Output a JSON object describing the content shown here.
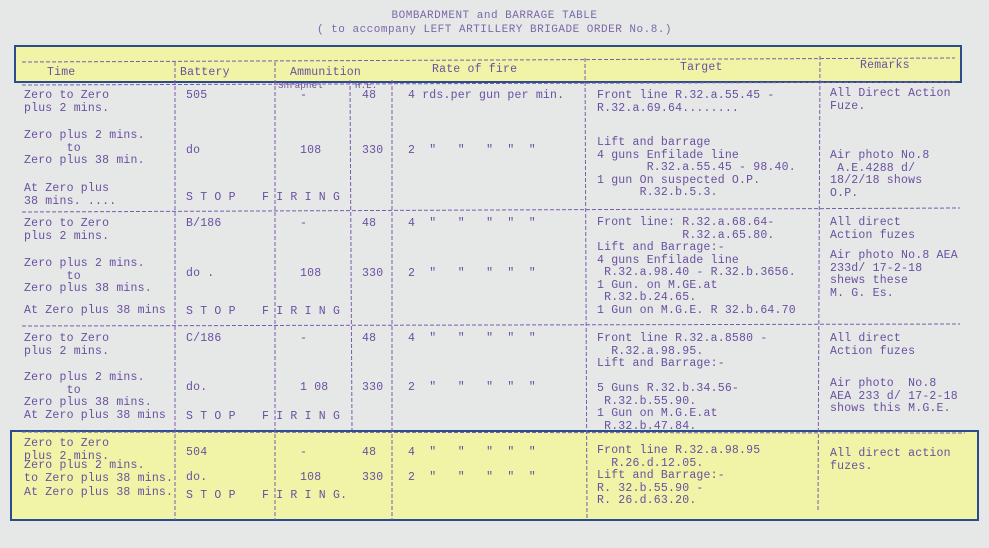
{
  "title": {
    "line1": "BOMBARDMENT and BARRAGE TABLE",
    "line2": "( to accompany LEFT ARTILLERY BRIGADE ORDER No.8.)"
  },
  "headers": {
    "time": "Time",
    "battery": "Battery",
    "ammunition": "Ammunition",
    "shrapnel": "Shrapnel",
    "he": "H.E.",
    "rate": "Rate of fire",
    "target": "Target",
    "remarks": "Remarks"
  },
  "highlight": {
    "fill": "#f1f3a6",
    "border": "#2b4c8c"
  },
  "ink_color": "#6b4fa0",
  "groups": [
    {
      "time": [
        "Zero to Zero\nplus 2 mins.",
        "Zero plus 2 mins.\n      to\nZero plus 38 min.",
        "At Zero plus\n38 mins. ...."
      ],
      "battery": [
        "505",
        "do",
        "S T O P"
      ],
      "shrapnel": [
        "-",
        "108",
        "F I R I N G"
      ],
      "he": [
        "48",
        "330"
      ],
      "rate": [
        "4 rds.per gun per min.",
        "2  \"   \"   \"  \"  \""
      ],
      "target": [
        "Front line R.32.a.55.45 -\nR.32.a.69.64........",
        "Lift and barrage\n4 guns Enfilade line\n       R.32.a.55.45 - 98.40.\n1 gun On suspected O.P.\n      R.32.b.5.3."
      ],
      "remarks": [
        "All Direct Action\nFuze.",
        "Air photo No.8\n A.E.4288 d/\n18/2/18 shows\nO.P."
      ]
    },
    {
      "time": [
        "Zero to Zero\nplus 2 mins.",
        "Zero plus 2 mins.\n      to\nZero plus 38 mins.",
        "At Zero plus 38 mins"
      ],
      "battery": [
        "B/186",
        "do .",
        "S T O P"
      ],
      "shrapnel": [
        "-",
        "108",
        "F I R I N G"
      ],
      "he": [
        "48",
        "330"
      ],
      "rate": [
        "4  \"   \"   \"  \"  \"",
        "2  \"   \"   \"  \"  \""
      ],
      "target": [
        "Front line: R.32.a.68.64-\n            R.32.a.65.80.\nLift and Barrage:-\n4 guns Enfilade line\n R.32.a.98.40 - R.32.b.3656.\n1 Gun. on M.GE.at\n R.32.b.24.65.\n1 Gun on M.G.E. R 32.b.64.70"
      ],
      "remarks": [
        "All direct\nAction fuzes",
        "Air photo No.8 AEA\n233d/ 17-2-18\nshews these\nM. G. Es."
      ]
    },
    {
      "time": [
        "Zero to Zero\nplus 2 mins.",
        "Zero plus 2 mins.\n      to\nZero plus 38 mins.",
        "At Zero plus 38 mins"
      ],
      "battery": [
        "C/186",
        "do.",
        "S T O P"
      ],
      "shrapnel": [
        "-",
        "1 08",
        "F I R I N G"
      ],
      "he": [
        "48",
        "330"
      ],
      "rate": [
        "4  \"   \"   \"  \"  \"",
        "2  \"   \"   \"  \"  \""
      ],
      "target": [
        "Front line R.32.a.8580 -\n  R.32.a.98.95.\nLift and Barrage:-\n\n5 Guns R.32.b.34.56-\n R.32.b.55.90.\n1 Gun on M.G.E.at\n R.32.b.47.84."
      ],
      "remarks": [
        "All direct\nAction fuzes",
        "Air photo  No.8\nAEA 233 d/ 17-2-18\nshows this M.G.E."
      ]
    },
    {
      "time": [
        "Zero to Zero\nplus 2 mins.",
        "Zero plus 2 mins.\nto Zero plus 38 mins.",
        "At Zero plus 38 mins."
      ],
      "battery": [
        "504",
        "do.",
        "S T O P"
      ],
      "shrapnel": [
        "-",
        "108",
        "F I R I N G."
      ],
      "he": [
        "48",
        "330"
      ],
      "rate": [
        "4  \"   \"   \"  \"  \"",
        "2  \"   \"   \"  \"  \""
      ],
      "target": [
        "Front line R.32.a.98.95\n  R.26.d.12.05.\nLift and Barrage:-\nR. 32.b.55.90 -\nR. 26.d.63.20."
      ],
      "remarks": [
        "All direct action\nfuzes."
      ]
    }
  ]
}
